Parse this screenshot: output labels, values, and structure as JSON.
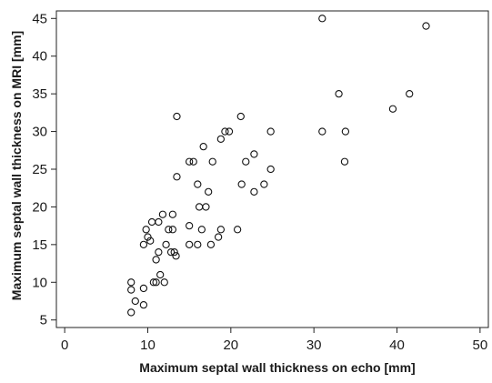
{
  "chart_data": {
    "type": "scatter",
    "title": "",
    "xlabel": "Maximum septal wall thickness on echo [mm]",
    "ylabel": "Maximum septal wall thickness on MRI [mm]",
    "xlim": [
      -1,
      51
    ],
    "ylim": [
      4,
      46
    ],
    "xticks": [
      0,
      10,
      20,
      30,
      40,
      50
    ],
    "yticks": [
      5,
      10,
      15,
      20,
      25,
      30,
      35,
      40,
      45
    ],
    "grid": false,
    "marker": "open-circle",
    "series": [
      {
        "points": [
          [
            8,
            6
          ],
          [
            8,
            9
          ],
          [
            8,
            10
          ],
          [
            8.5,
            7.5
          ],
          [
            9.5,
            7
          ],
          [
            9.5,
            9.2
          ],
          [
            9.5,
            15
          ],
          [
            9.8,
            17
          ],
          [
            10,
            16
          ],
          [
            10.3,
            15.5
          ],
          [
            10.5,
            18
          ],
          [
            10.7,
            10
          ],
          [
            11,
            10
          ],
          [
            11,
            13
          ],
          [
            11.3,
            18
          ],
          [
            11.3,
            14
          ],
          [
            11.5,
            11
          ],
          [
            11.8,
            19
          ],
          [
            12,
            10
          ],
          [
            12.2,
            15
          ],
          [
            12.5,
            17
          ],
          [
            12.8,
            14
          ],
          [
            13,
            17
          ],
          [
            13,
            19
          ],
          [
            13.2,
            14
          ],
          [
            13.4,
            13.5
          ],
          [
            13.5,
            24
          ],
          [
            13.5,
            32
          ],
          [
            15,
            26
          ],
          [
            15,
            15
          ],
          [
            15,
            17.5
          ],
          [
            15.5,
            26
          ],
          [
            16,
            23
          ],
          [
            16,
            15
          ],
          [
            16.2,
            20
          ],
          [
            16.5,
            17
          ],
          [
            16.7,
            28
          ],
          [
            17,
            20
          ],
          [
            17.3,
            22
          ],
          [
            17.6,
            15
          ],
          [
            17.8,
            26
          ],
          [
            18.5,
            16
          ],
          [
            18.8,
            29
          ],
          [
            18.8,
            17
          ],
          [
            19.3,
            30
          ],
          [
            19.8,
            30
          ],
          [
            20.8,
            17
          ],
          [
            21.2,
            32
          ],
          [
            21.3,
            23
          ],
          [
            21.8,
            26
          ],
          [
            22.8,
            22
          ],
          [
            22.8,
            27
          ],
          [
            24,
            23
          ],
          [
            24.8,
            25
          ],
          [
            24.8,
            30
          ],
          [
            31,
            45
          ],
          [
            31,
            30
          ],
          [
            33,
            35
          ],
          [
            33.7,
            26
          ],
          [
            33.8,
            30
          ],
          [
            39.5,
            33
          ],
          [
            41.5,
            35
          ],
          [
            43.5,
            44
          ]
        ]
      }
    ]
  }
}
